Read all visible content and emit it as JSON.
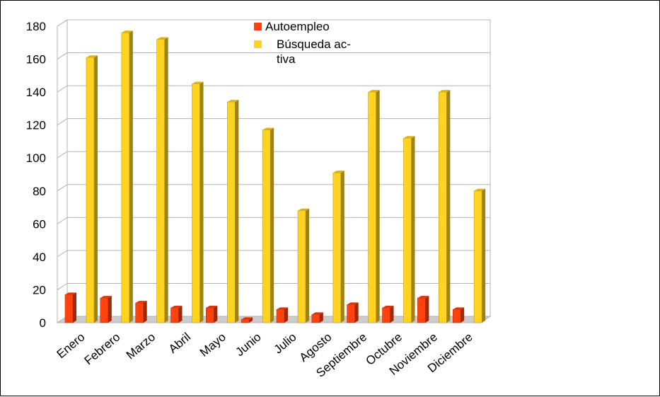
{
  "chart_data": {
    "type": "bar",
    "title": "",
    "xlabel": "",
    "ylabel": "",
    "ylim": [
      0,
      180
    ],
    "yticks": [
      0,
      20,
      40,
      60,
      80,
      100,
      120,
      140,
      160,
      180
    ],
    "grid": true,
    "legend_position": "top-center",
    "categories": [
      "Enero",
      "Febrero",
      "Marzo",
      "Abril",
      "Mayo",
      "Junio",
      "Julio",
      "Agosto",
      "Septiembre",
      "Octubre",
      "Noviembre",
      "Diciembre"
    ],
    "series": [
      {
        "name": "Autoempleo",
        "color": "#ff420e",
        "values": [
          17,
          15,
          12,
          9,
          9,
          2,
          8,
          5,
          11,
          9,
          15,
          8
        ]
      },
      {
        "name": "Búsqueda activa",
        "legend_lines": [
          "Búsqueda ac-",
          "tiva"
        ],
        "color": "#ffd320",
        "values": [
          161,
          176,
          172,
          145,
          134,
          117,
          68,
          91,
          140,
          112,
          140,
          80
        ]
      }
    ]
  }
}
